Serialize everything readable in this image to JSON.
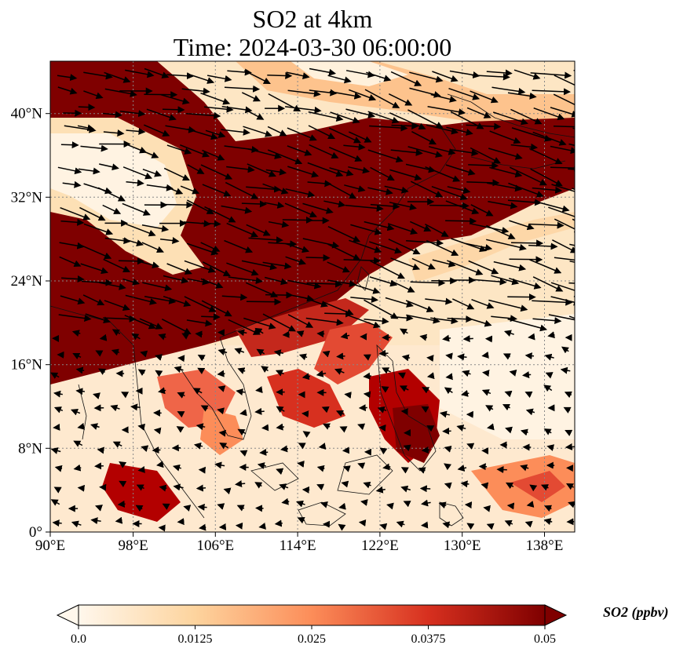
{
  "title": {
    "line1": "SO2 at 4km",
    "line2": "Time: 2024-03-30 06:00:00"
  },
  "map": {
    "lon_range": [
      90,
      141
    ],
    "lat_range": [
      0,
      45
    ],
    "lon_ticks": [
      "90°E",
      "98°E",
      "106°E",
      "114°E",
      "122°E",
      "130°E",
      "138°E"
    ],
    "lat_ticks": [
      "0°",
      "8°N",
      "16°N",
      "24°N",
      "32°N",
      "40°N"
    ],
    "gridlines": "dotted",
    "overlay": "wind vectors (arrows)",
    "coastlines": true,
    "colormap": "OrRd"
  },
  "colorbar": {
    "label": "SO2 (ppbv)",
    "ticks": [
      "0.0",
      "0.0125",
      "0.025",
      "0.0375",
      "0.05"
    ],
    "range": [
      0.0,
      0.05
    ],
    "extend": "both",
    "colors": [
      "#fff7ec",
      "#fdd49e",
      "#fc8d59",
      "#d7301f",
      "#7f0000"
    ]
  }
}
